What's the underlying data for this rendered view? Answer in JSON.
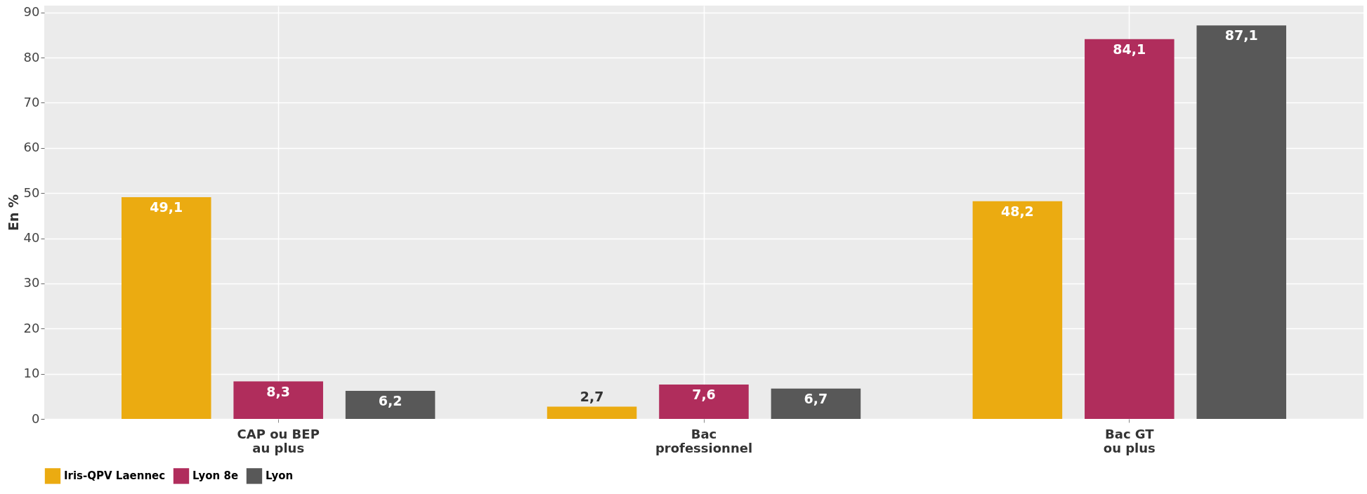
{
  "chart_data": {
    "type": "bar",
    "ylabel": "En %",
    "categories": [
      "CAP ou BEP\nau plus",
      "Bac\nprofessionnel",
      "Bac GT\nou plus"
    ],
    "series": [
      {
        "name": "Iris-QPV Laennec",
        "color": "#ebab11",
        "values": [
          49.1,
          2.7,
          48.2
        ],
        "value_labels": [
          "49,1",
          "2,7",
          "48,2"
        ]
      },
      {
        "name": "Lyon 8e",
        "color": "#b02d5c",
        "values": [
          8.3,
          7.6,
          84.1
        ],
        "value_labels": [
          "8,3",
          "7,6",
          "84,1"
        ]
      },
      {
        "name": "Lyon",
        "color": "#585858",
        "values": [
          6.2,
          6.7,
          87.1
        ],
        "value_labels": [
          "6,2",
          "6,7",
          "87,1"
        ]
      }
    ],
    "ylim": [
      0,
      91.5
    ],
    "yticks": [
      0,
      10,
      20,
      30,
      40,
      50,
      60,
      70,
      80,
      90
    ],
    "grid": true,
    "legend": "bottom"
  }
}
